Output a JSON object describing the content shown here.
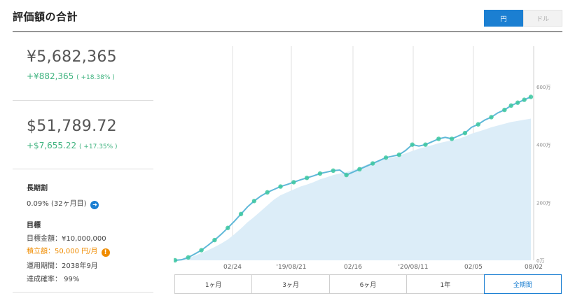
{
  "header": {
    "title": "評価額の合計",
    "currency_options": [
      "円",
      "ドル"
    ],
    "active_currency": "円"
  },
  "summary_jpy": {
    "value": "¥5,682,365",
    "gain": "+¥882,365",
    "gain_pct": "( +18.38% )"
  },
  "summary_usd": {
    "value": "$51,789.72",
    "gain": "+$7,655.22",
    "gain_pct": "( +17.35% )"
  },
  "long_term": {
    "label": "長期割",
    "value": "0.09% (32ヶ月目)"
  },
  "goal": {
    "label": "目標",
    "target_amount": "目標金額：¥10,000,000",
    "contribution": "積立額：50,000 円/月",
    "period": "運用期間：2038年9月",
    "probability": "達成確率： 99%"
  },
  "periods": [
    "1ヶ月",
    "3ヶ月",
    "6ヶ月",
    "1年",
    "全期間"
  ],
  "selected_period": "全期間",
  "colors": {
    "accent": "#1b7fd2",
    "gain": "#3fb37f",
    "warning": "#f08c00",
    "line": "#5fb8d8",
    "area": "#dcedf8",
    "dot": "#3cc7a0"
  },
  "chart_data": {
    "type": "line",
    "x_ticks": [
      "02/24",
      "'19/08/21",
      "02/16",
      "'20/08/11",
      "02/05",
      "08/02"
    ],
    "y_ticks": [
      "0万",
      "200万",
      "400万",
      "600万"
    ],
    "ylim": [
      0,
      600
    ],
    "series": [
      {
        "values": [
          0,
          2,
          10,
          22,
          35,
          52,
          70,
          90,
          112,
          135,
          160,
          185,
          205,
          222,
          235,
          245,
          255,
          262,
          270,
          278,
          285,
          292,
          300,
          305,
          310,
          312,
          295,
          305,
          315,
          325,
          335,
          345,
          355,
          360,
          365,
          380,
          400,
          395,
          400,
          410,
          420,
          425,
          420,
          430,
          440,
          460,
          470,
          485,
          495,
          510,
          520,
          535,
          545,
          555,
          565
        ]
      },
      {
        "values": [
          0,
          2,
          8,
          16,
          25,
          35,
          46,
          58,
          72,
          90,
          110,
          132,
          150,
          170,
          190,
          210,
          225,
          235,
          245,
          255,
          262,
          270,
          280,
          287,
          295,
          300,
          305,
          312,
          320,
          330,
          338,
          345,
          350,
          355,
          362,
          370,
          378,
          386,
          392,
          398,
          405,
          410,
          415,
          420,
          428,
          438,
          445,
          452,
          460,
          466,
          472,
          478,
          482,
          486,
          490
        ]
      }
    ]
  }
}
